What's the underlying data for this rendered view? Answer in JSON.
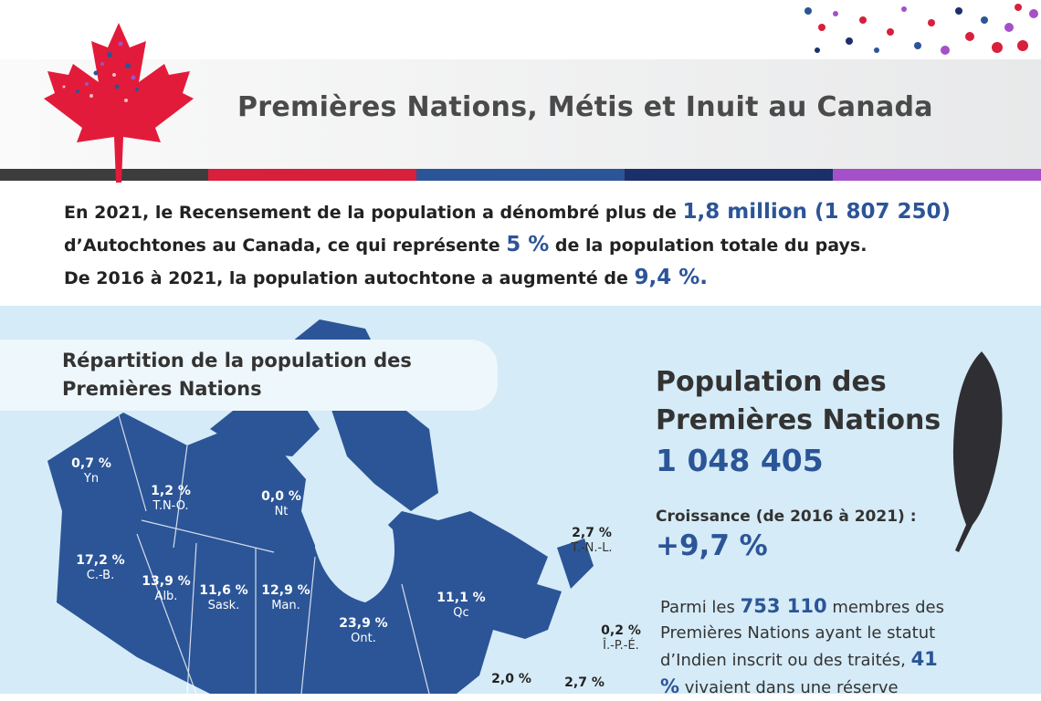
{
  "header": {
    "title": "Premières Nations, Métis et Inuit au Canada"
  },
  "intro": {
    "lines": [
      [
        {
          "text": "En 2021, le Recensement de la population a dénombré plus de",
          "emphasis": false
        },
        {
          "text": "1,8 million (1 807 250)",
          "emphasis": true
        }
      ],
      [
        {
          "text": "d’Autochtones au Canada, ce qui représente",
          "emphasis": false
        },
        {
          "text": "5 %",
          "emphasis": true
        },
        {
          "text": "de la population totale du pays.",
          "emphasis": false
        }
      ],
      [
        {
          "text": "De 2016 à 2021, la population autochtone a augmenté de",
          "emphasis": false
        },
        {
          "text": "9,4 %.",
          "emphasis": true
        }
      ]
    ]
  },
  "map": {
    "title": "Répartition de la population des Premières Nations",
    "regions": [
      {
        "value": "0,7 %",
        "label": "Yn"
      },
      {
        "value": "1,2 %",
        "label": "T.N-O."
      },
      {
        "value": "0,0 %",
        "label": "Nt"
      },
      {
        "value": "17,2 %",
        "label": "C.-B."
      },
      {
        "value": "13,9 %",
        "label": "Alb."
      },
      {
        "value": "11,6 %",
        "label": "Sask."
      },
      {
        "value": "12,9 %",
        "label": "Man."
      },
      {
        "value": "23,9 %",
        "label": "Ont."
      },
      {
        "value": "11,1 %",
        "label": "Qc"
      },
      {
        "value": "2,7 %",
        "label": "T.-N.-L."
      },
      {
        "value": "0,2 %",
        "label": "Î.-P.-É."
      },
      {
        "value": "2,0 %",
        "label": null
      },
      {
        "value": "2,7 %",
        "label": null
      }
    ]
  },
  "summary": {
    "title": "Population des Premières Nations",
    "population": "1 048 405",
    "growth_label": "Croissance (de 2016 à 2021) :",
    "growth": "+9,7 %",
    "note": [
      {
        "text": "Parmi les",
        "emphasis": false
      },
      {
        "text": "753 110",
        "emphasis": true
      },
      {
        "text": "membres des Premières Nations ayant le statut d’Indien inscrit ou des traités,",
        "emphasis": false
      },
      {
        "text": "41 %",
        "emphasis": true
      },
      {
        "text": "vivaient dans une réserve",
        "emphasis": false
      }
    ]
  }
}
